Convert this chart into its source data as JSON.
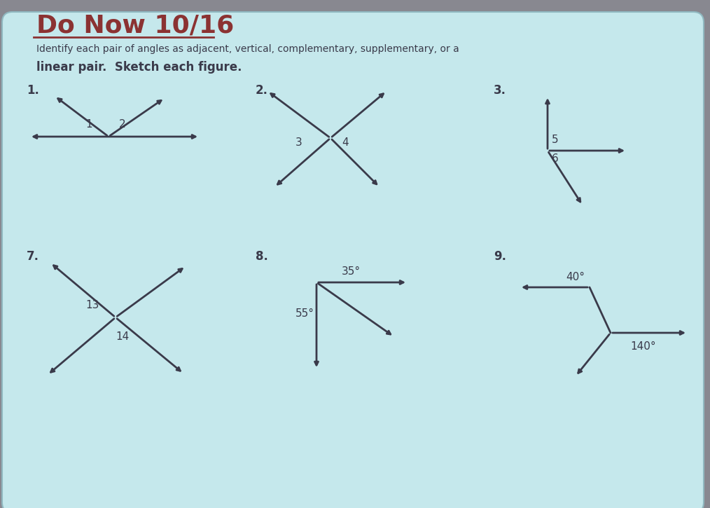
{
  "title": "Do Now 10/16",
  "subtitle_line1": "Identify each pair of angles as adjacent, vertical, complementary, supplementary, or a",
  "subtitle_line2": "linear pair.  Sketch each figure.",
  "bg_color": "#c5e8ec",
  "outer_bg": "#888890",
  "title_color": "#8b3232",
  "text_color": "#3a3a4a",
  "line_color": "#3a3a4a",
  "label_color": "#3a3a4a",
  "figsize": [
    10.14,
    7.25
  ],
  "dpi": 100
}
